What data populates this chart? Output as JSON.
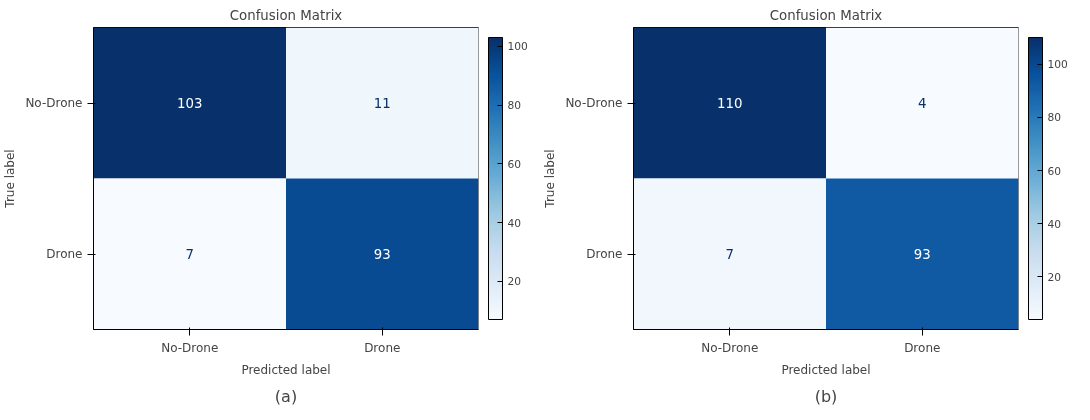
{
  "chart_data": [
    {
      "type": "heatmap",
      "title": "Confusion Matrix",
      "xlabel": "Predicted label",
      "ylabel": "True label",
      "categories": [
        "No-Drone",
        "Drone"
      ],
      "y_categories": [
        "No-Drone",
        "Drone"
      ],
      "cells": [
        [
          103,
          11
        ],
        [
          7,
          93
        ]
      ],
      "data_labels": true,
      "clim": [
        7,
        103
      ],
      "cticks": [
        20,
        40,
        60,
        80,
        100
      ],
      "annotations": [
        "(a)"
      ]
    },
    {
      "type": "heatmap",
      "title": "Confusion Matrix",
      "xlabel": "Predicted label",
      "ylabel": "True label",
      "categories": [
        "No-Drone",
        "Drone"
      ],
      "y_categories": [
        "No-Drone",
        "Drone"
      ],
      "cells": [
        [
          110,
          4
        ],
        [
          7,
          93
        ]
      ],
      "data_labels": true,
      "clim": [
        4,
        110
      ],
      "cticks": [
        20,
        40,
        60,
        80,
        100
      ],
      "annotations": [
        "(b)"
      ]
    }
  ]
}
